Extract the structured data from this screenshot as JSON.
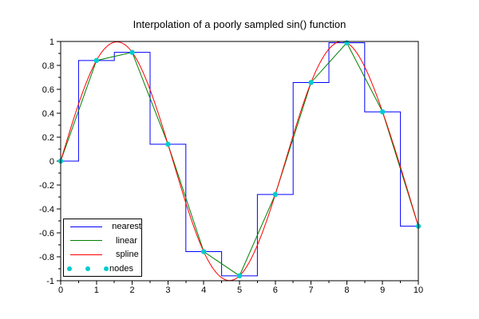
{
  "figure": {
    "background": "#ffffff",
    "axis_color": "#000000"
  },
  "chart_data": {
    "type": "line",
    "title": "Interpolation of a poorly sampled sin() function",
    "xlim": [
      0,
      10
    ],
    "ylim": [
      -1,
      1
    ],
    "grid": false,
    "x_ticks": {
      "values": [
        0,
        1,
        2,
        3,
        4,
        5,
        6,
        7,
        8,
        9,
        10
      ],
      "labels": [
        "0",
        "1",
        "2",
        "3",
        "4",
        "5",
        "6",
        "7",
        "8",
        "9",
        "10"
      ],
      "minor_offset": 0.5
    },
    "y_ticks": {
      "values": [
        1,
        0.8,
        0.6,
        0.4,
        0.2,
        0,
        -0.2,
        -0.4,
        -0.6,
        -0.8,
        -1
      ],
      "labels": [
        "1",
        "0.8",
        "0.6",
        "0.4",
        "0.2",
        "0",
        "-0.2",
        "-0.4",
        "-0.6",
        "-0.8",
        "-1"
      ],
      "minor_offset": -0.1
    },
    "nodes": {
      "x": [
        0,
        1,
        2,
        3,
        4,
        5,
        6,
        7,
        8,
        9,
        10
      ],
      "y": [
        0,
        0.841,
        0.909,
        0.141,
        -0.757,
        -0.959,
        -0.279,
        0.657,
        0.989,
        0.412,
        -0.544
      ]
    },
    "series": [
      {
        "name": "nearest",
        "interpolation": "nearest",
        "color": "#0000ff"
      },
      {
        "name": "linear",
        "interpolation": "linear",
        "color": "#008000"
      },
      {
        "name": "spline",
        "interpolation": "spline",
        "color": "#ff0000"
      },
      {
        "name": "nodes",
        "interpolation": "markers",
        "color": "#00cccc"
      }
    ],
    "legend": {
      "position": "bottom-left",
      "border_color": "#000000",
      "background": "#ffffff"
    }
  }
}
